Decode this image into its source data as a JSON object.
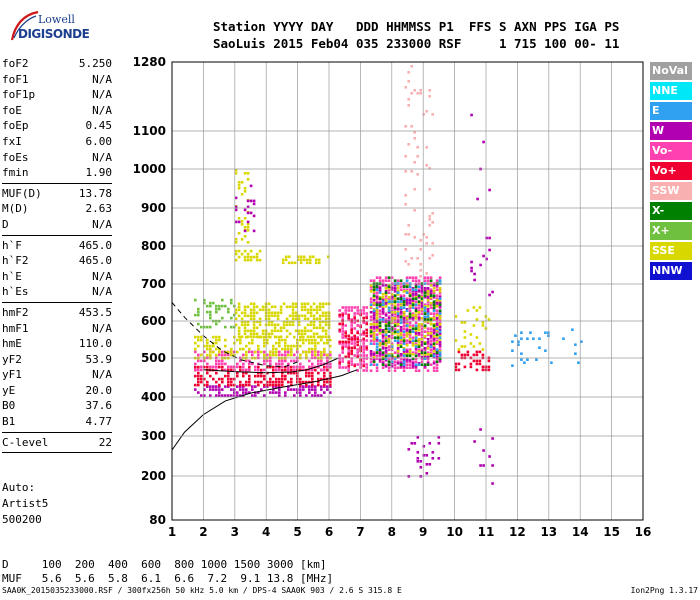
{
  "logo": {
    "line1": "Lowell",
    "line2": "DIGISONDE"
  },
  "header": {
    "line1": "Station YYYY DAY   DDD HHMMSS P1  FFS S AXN PPS IGA PS",
    "line2": "SaoLuis 2015 Feb04 035 233000 RSF     1 715 100 00- 11"
  },
  "parameters": [
    {
      "name": "foF2",
      "value": "5.250"
    },
    {
      "name": "foF1",
      "value": "N/A"
    },
    {
      "name": "foF1p",
      "value": "N/A"
    },
    {
      "name": "foE",
      "value": "N/A"
    },
    {
      "name": "foEp",
      "value": "0.45"
    },
    {
      "name": "fxI",
      "value": "6.00"
    },
    {
      "name": "foEs",
      "value": "N/A"
    },
    {
      "name": "fmin",
      "value": "1.90"
    },
    {
      "sep": true
    },
    {
      "name": "MUF(D)",
      "value": "13.78"
    },
    {
      "name": "M(D)",
      "value": "2.63"
    },
    {
      "name": "D",
      "value": "N/A"
    },
    {
      "sep": true
    },
    {
      "name": "h`F",
      "value": "465.0"
    },
    {
      "name": "h`F2",
      "value": "465.0"
    },
    {
      "name": "h`E",
      "value": "N/A"
    },
    {
      "name": "h`Es",
      "value": "N/A"
    },
    {
      "sep": true
    },
    {
      "name": "hmF2",
      "value": "453.5"
    },
    {
      "name": "hmF1",
      "value": "N/A"
    },
    {
      "name": "hmE",
      "value": "110.0"
    },
    {
      "name": "yF2",
      "value": "53.9"
    },
    {
      "name": "yF1",
      "value": "N/A"
    },
    {
      "name": "yE",
      "value": "20.0"
    },
    {
      "name": "B0",
      "value": "37.6"
    },
    {
      "name": "B1",
      "value": "4.77"
    },
    {
      "sep": true
    },
    {
      "name": "C-level",
      "value": "22"
    },
    {
      "sep": true
    }
  ],
  "auto": {
    "line1": "Auto:",
    "line2": "Artist5",
    "line3": "500200"
  },
  "dmuf": {
    "d_label": "D",
    "d_values": "100  200  400  600  800 1000 1500 3000 [km]",
    "muf_label": "MUF",
    "muf_values": "5.6  5.6  5.8  6.1  6.6  7.2  9.1 13.8 [MHz]"
  },
  "footer": {
    "left": "SAA0K_2015035233000.RSF / 300fx256h 50 kHz 5.0 km / DPS-4 SAA0K 903 / 2.6 S 315.8 E",
    "right": "Ion2Png 1.3.17"
  },
  "legend": [
    {
      "label": "NoVal",
      "color": "#a0a0a0"
    },
    {
      "label": "NNE",
      "color": "#00e8f8"
    },
    {
      "label": "E",
      "color": "#30a0f0"
    },
    {
      "label": "W",
      "color": "#b000b0"
    },
    {
      "label": "Vo-",
      "color": "#ff40b0"
    },
    {
      "label": "Vo+",
      "color": "#f00030"
    },
    {
      "label": "SSW",
      "color": "#f8b0b0"
    },
    {
      "label": "X-",
      "color": "#008000"
    },
    {
      "label": "X+",
      "color": "#70c040"
    },
    {
      "label": "SSE",
      "color": "#d8d800"
    },
    {
      "label": "NNW",
      "color": "#1010d0"
    }
  ],
  "chart_data": {
    "type": "scatter",
    "x_ticks": [
      1,
      2,
      3,
      4,
      5,
      6,
      7,
      8,
      9,
      10,
      11,
      12,
      13,
      14,
      15,
      16
    ],
    "y_ticks": [
      80,
      200,
      300,
      400,
      500,
      600,
      700,
      800,
      900,
      1000,
      1100,
      1280
    ],
    "xlim": [
      1,
      16
    ],
    "grid": true,
    "y_scale": "nonlinear (virtual height km)",
    "clusters": [
      {
        "x": [
          1.7,
          6.0
        ],
        "y": [
          400,
          430
        ],
        "color": "#b000b0",
        "density": 0.55
      },
      {
        "x": [
          1.7,
          6.0
        ],
        "y": [
          430,
          480
        ],
        "color": "#f00030",
        "density": 0.55
      },
      {
        "x": [
          1.7,
          6.0
        ],
        "y": [
          470,
          520
        ],
        "color": "#ff40b0",
        "density": 0.5
      },
      {
        "x": [
          1.7,
          6.0
        ],
        "y": [
          500,
          560
        ],
        "color": "#d8d800",
        "density": 0.45
      },
      {
        "x": [
          3.0,
          6.0
        ],
        "y": [
          560,
          650
        ],
        "color": "#d8d800",
        "density": 0.6
      },
      {
        "x": [
          1.7,
          3.0
        ],
        "y": [
          580,
          660
        ],
        "color": "#70c040",
        "density": 0.3
      },
      {
        "x": [
          3.0,
          3.8
        ],
        "y": [
          760,
          790
        ],
        "color": "#d8d800",
        "density": 0.6
      },
      {
        "x": [
          4.5,
          6.0
        ],
        "y": [
          755,
          775
        ],
        "color": "#d8d800",
        "density": 0.5
      },
      {
        "x": [
          3.0,
          3.4
        ],
        "y": [
          800,
          1000
        ],
        "color": "#d8d800",
        "density": 0.25
      },
      {
        "x": [
          3.0,
          3.6
        ],
        "y": [
          840,
          960
        ],
        "color": "#b000b0",
        "density": 0.12
      },
      {
        "x": [
          6.3,
          7.2
        ],
        "y": [
          470,
          640
        ],
        "color": "#ff40b0",
        "density": 0.6
      },
      {
        "x": [
          6.3,
          7.2
        ],
        "y": [
          480,
          620
        ],
        "color": "#f00030",
        "density": 0.35
      },
      {
        "x": [
          7.3,
          9.5
        ],
        "y": [
          470,
          720
        ],
        "color": "#ff40b0",
        "density": 0.65
      },
      {
        "x": [
          7.3,
          9.5
        ],
        "y": [
          480,
          700
        ],
        "color": "#b000b0",
        "density": 0.35
      },
      {
        "x": [
          7.3,
          9.5
        ],
        "y": [
          500,
          700
        ],
        "color": "#d8d800",
        "density": 0.3
      },
      {
        "x": [
          7.3,
          9.5
        ],
        "y": [
          480,
          720
        ],
        "color": "#008000",
        "density": 0.15
      },
      {
        "x": [
          7.3,
          9.5
        ],
        "y": [
          480,
          720
        ],
        "color": "#30a0f0",
        "density": 0.12
      },
      {
        "x": [
          8.4,
          9.3
        ],
        "y": [
          720,
          1280
        ],
        "color": "#f8b0b0",
        "density": 0.08
      },
      {
        "x": [
          8.5,
          9.5
        ],
        "y": [
          180,
          300
        ],
        "color": "#b000b0",
        "density": 0.12
      },
      {
        "x": [
          10.0,
          11.1
        ],
        "y": [
          470,
          520
        ],
        "color": "#f00030",
        "density": 0.35
      },
      {
        "x": [
          10.0,
          11.1
        ],
        "y": [
          520,
          640
        ],
        "color": "#d8d800",
        "density": 0.15
      },
      {
        "x": [
          10.5,
          11.2
        ],
        "y": [
          650,
          1200
        ],
        "color": "#b000b0",
        "density": 0.04
      },
      {
        "x": [
          10.5,
          11.2
        ],
        "y": [
          180,
          320
        ],
        "color": "#b000b0",
        "density": 0.06
      },
      {
        "x": [
          11.8,
          14.3
        ],
        "y": [
          480,
          580
        ],
        "color": "#30a0f0",
        "density": 0.08
      }
    ],
    "curves": [
      {
        "style": "solid",
        "points": [
          [
            1,
            265
          ],
          [
            1.4,
            310
          ],
          [
            2,
            355
          ],
          [
            2.7,
            390
          ],
          [
            3.5,
            410
          ],
          [
            4.5,
            425
          ],
          [
            5.6,
            440
          ],
          [
            6.4,
            455
          ],
          [
            6.9,
            470
          ]
        ]
      },
      {
        "style": "solid",
        "points": [
          [
            2.0,
            470
          ],
          [
            3.0,
            465
          ],
          [
            4.0,
            462
          ],
          [
            4.8,
            464
          ],
          [
            5.3,
            470
          ],
          [
            5.8,
            482
          ],
          [
            6.3,
            500
          ]
        ]
      },
      {
        "style": "dashed",
        "points": [
          [
            1.0,
            650
          ],
          [
            1.4,
            610
          ],
          [
            2.0,
            560
          ],
          [
            2.6,
            520
          ],
          [
            3.2,
            495
          ],
          [
            4.0,
            480
          ],
          [
            4.6,
            478
          ],
          [
            5.0,
            490
          ]
        ]
      }
    ]
  }
}
